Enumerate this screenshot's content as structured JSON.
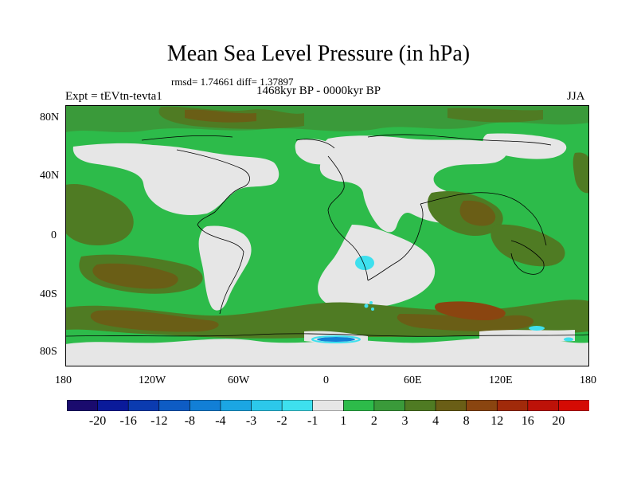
{
  "title": "Mean Sea Level Pressure (in hPa)",
  "stats": "rmsd= 1.74661 diff= 1.37897",
  "experiment": "Expt = tEVtn-tevta1",
  "period": "1468kyr BP - 0000kyr BP",
  "season": "JJA",
  "lat_labels": [
    "80N",
    "40N",
    "0",
    "40S",
    "80S"
  ],
  "lon_labels": [
    "180",
    "120W",
    "60W",
    "0",
    "60E",
    "120E",
    "180"
  ],
  "colorbar": {
    "labels": [
      "-20",
      "-16",
      "-12",
      "-8",
      "-4",
      "-3",
      "-2",
      "-1",
      "1",
      "2",
      "3",
      "4",
      "8",
      "12",
      "16",
      "20"
    ],
    "colors": [
      "#1a0b6e",
      "#0a1a9a",
      "#0b3bb0",
      "#0e5cc4",
      "#127fd6",
      "#1ba6e3",
      "#2cc8ea",
      "#3ee0ee",
      "#e6e6e6",
      "#2dbb4a",
      "#3a9a3a",
      "#4f7b23",
      "#6a5e16",
      "#8a4510",
      "#a12a0a",
      "#bd1208",
      "#d40b04"
    ]
  },
  "legend_colors": {
    "ocean_green": "#2dbb4a",
    "neutral_grey": "#e6e6e6",
    "dark_green": "#3a9a3a",
    "olive": "#4f7b23",
    "brown": "#6a5e16",
    "cyan": "#3ee0ee"
  }
}
